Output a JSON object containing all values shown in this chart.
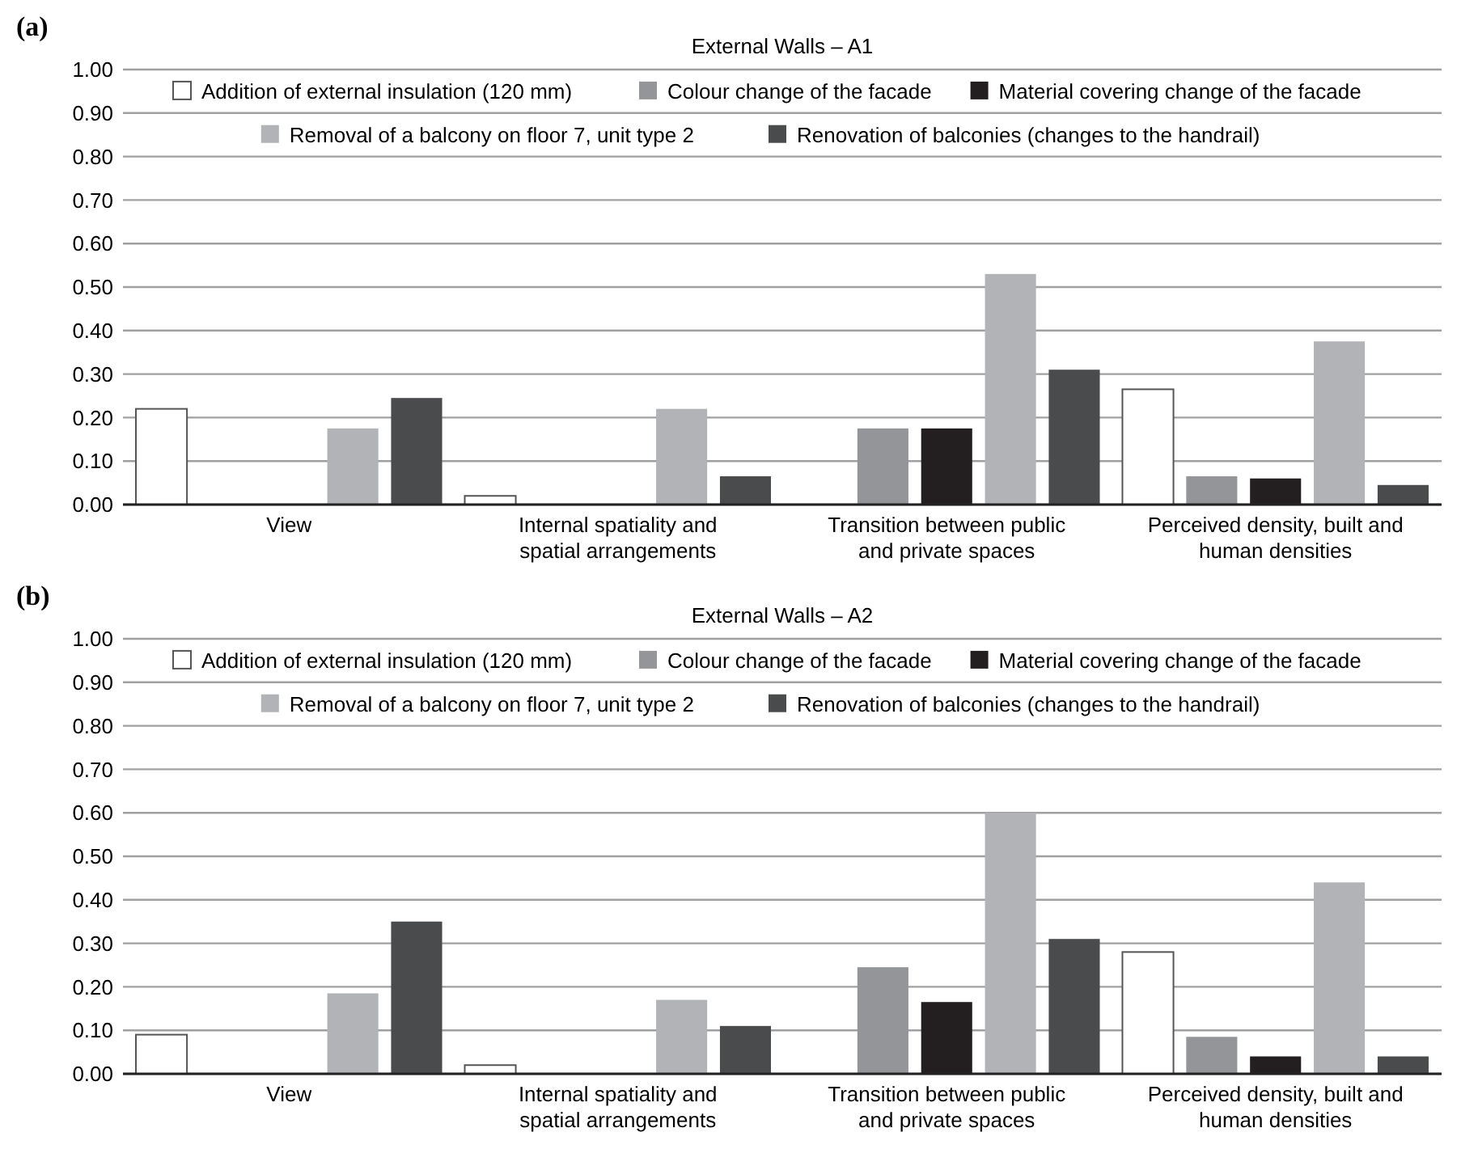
{
  "chart_data": [
    {
      "type": "bar",
      "title": "External Walls – A1",
      "annotations": [
        "(a)"
      ],
      "categories": [
        "View",
        "Internal spatiality and spatial arrangements",
        "Transition between public and private spaces",
        "Perceived density, built and human densities"
      ],
      "series": [
        {
          "name": "Addition of external insulation (120 mm)",
          "color": "#ffffff",
          "values": [
            0.22,
            0.02,
            0,
            0.265
          ]
        },
        {
          "name": "Colour change of the facade",
          "color": "#939598",
          "values": [
            0,
            0,
            0.175,
            0.065
          ]
        },
        {
          "name": "Material covering change of the facade",
          "color": "#231f20",
          "values": [
            0,
            0,
            0.175,
            0.06
          ]
        },
        {
          "name": "Removal of a balcony on floor 7, unit type 2",
          "color": "#b1b3b6",
          "values": [
            0.175,
            0.22,
            0.53,
            0.375
          ]
        },
        {
          "name": "Renovation of balconies (changes to the handrail)",
          "color": "#4a4b4d",
          "values": [
            0.245,
            0.065,
            0.31,
            0.045
          ]
        }
      ],
      "ylim": [
        0,
        1
      ],
      "yticks": [
        {
          "value": 0,
          "label": "0.00"
        },
        {
          "value": 0.1,
          "label": "0.10"
        },
        {
          "value": 0.2,
          "label": "0.20"
        },
        {
          "value": 0.3,
          "label": "0.30"
        },
        {
          "value": 0.4,
          "label": "0.40"
        },
        {
          "value": 0.5,
          "label": "0.50"
        },
        {
          "value": 0.6,
          "label": "0.60"
        },
        {
          "value": 0.7,
          "label": "0.70"
        },
        {
          "value": 0.8,
          "label": "0.80"
        },
        {
          "value": 0.9,
          "label": "0.90"
        },
        {
          "value": 1,
          "label": "1.00"
        }
      ],
      "grid": "y",
      "legend": "top"
    },
    {
      "type": "bar",
      "title": "External Walls – A2",
      "annotations": [
        "(b)"
      ],
      "categories": [
        "View",
        "Internal spatiality and spatial arrangements",
        "Transition between public and private spaces",
        "Perceived density, built and human densities"
      ],
      "series": [
        {
          "name": "Addition of external insulation (120 mm)",
          "color": "#ffffff",
          "values": [
            0.09,
            0.02,
            0,
            0.28
          ]
        },
        {
          "name": "Colour change of the facade",
          "color": "#939598",
          "values": [
            0,
            0,
            0.245,
            0.085
          ]
        },
        {
          "name": "Material covering change of the facade",
          "color": "#231f20",
          "values": [
            0,
            0,
            0.165,
            0.04
          ]
        },
        {
          "name": "Removal of a balcony on floor 7, unit type 2",
          "color": "#b1b3b6",
          "values": [
            0.185,
            0.17,
            0.6,
            0.44
          ]
        },
        {
          "name": "Renovation of balconies (changes to the handrail)",
          "color": "#4a4b4d",
          "values": [
            0.35,
            0.11,
            0.31,
            0.04
          ]
        }
      ],
      "ylim": [
        0,
        1
      ],
      "yticks": [
        {
          "value": 0,
          "label": "0.00"
        },
        {
          "value": 0.1,
          "label": "0.10"
        },
        {
          "value": 0.2,
          "label": "0.20"
        },
        {
          "value": 0.3,
          "label": "0.30"
        },
        {
          "value": 0.4,
          "label": "0.40"
        },
        {
          "value": 0.5,
          "label": "0.50"
        },
        {
          "value": 0.6,
          "label": "0.60"
        },
        {
          "value": 0.7,
          "label": "0.70"
        },
        {
          "value": 0.8,
          "label": "0.80"
        },
        {
          "value": 0.9,
          "label": "0.90"
        },
        {
          "value": 1,
          "label": "1.00"
        }
      ],
      "grid": "y",
      "legend": "top"
    }
  ]
}
